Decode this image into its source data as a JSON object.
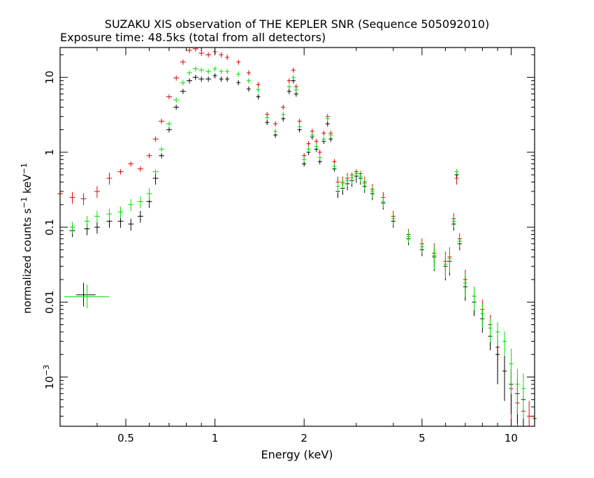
{
  "chart_data": {
    "type": "scatter",
    "title": "SUZAKU XIS observation of THE KEPLER SNR (Sequence 505092010)",
    "subtitle": "Exposure time: 48.5ks (total from all detectors)",
    "xlabel": "Energy (keV)",
    "ylabel": "normalized counts s",
    "ylabel_sup1": "−1",
    "ylabel_mid": " keV",
    "ylabel_sup2": "−1",
    "x_scale": "log",
    "y_scale": "log",
    "xlim": [
      0.3,
      12
    ],
    "ylim": [
      0.00022,
      25
    ],
    "x_ticks": [
      {
        "value": 0.5,
        "label": "0.5"
      },
      {
        "value": 1,
        "label": "1"
      },
      {
        "value": 2,
        "label": "2"
      },
      {
        "value": 5,
        "label": "5"
      },
      {
        "value": 10,
        "label": "10"
      }
    ],
    "y_ticks": [
      {
        "value": 10,
        "label": "10"
      },
      {
        "value": 1,
        "label": "1"
      },
      {
        "value": 0.1,
        "label": "0.1"
      },
      {
        "value": 0.01,
        "label": "0.01"
      },
      {
        "value": 0.001,
        "label": "10",
        "sup": "−3"
      }
    ],
    "grid": false,
    "series": [
      {
        "color": "#e00000",
        "x": [
          0.3,
          0.33,
          0.36,
          0.4,
          0.44,
          0.48,
          0.52,
          0.56,
          0.6,
          0.63,
          0.66,
          0.7,
          0.74,
          0.78,
          0.82,
          0.86,
          0.9,
          0.95,
          1.0,
          1.05,
          1.1,
          1.2,
          1.3,
          1.4,
          1.5,
          1.6,
          1.7,
          1.78,
          1.84,
          1.88,
          1.93,
          2.0,
          2.07,
          2.13,
          2.2,
          2.26,
          2.33,
          2.4,
          2.46,
          2.53,
          2.6,
          2.7,
          2.8,
          2.9,
          3.0,
          3.1,
          3.2,
          3.4,
          3.7,
          4.0,
          4.5,
          5.0,
          5.5,
          6.0,
          6.2,
          6.4,
          6.55,
          6.7,
          7.0,
          7.5,
          8.0,
          8.5,
          9.0,
          9.5,
          10.0,
          10.5,
          11.0,
          11.5,
          12.0
        ],
        "y": [
          0.28,
          0.25,
          0.24,
          0.3,
          0.45,
          0.55,
          0.7,
          0.6,
          0.9,
          1.5,
          2.6,
          5.5,
          9.8,
          16.0,
          23.0,
          24.0,
          21.0,
          20.0,
          22.0,
          20.0,
          18.5,
          16.0,
          11.5,
          8.0,
          3.2,
          2.4,
          4.0,
          9.0,
          12.5,
          7.5,
          2.6,
          0.9,
          1.3,
          1.9,
          1.4,
          1.0,
          1.8,
          3.0,
          1.8,
          0.75,
          0.4,
          0.4,
          0.45,
          0.5,
          0.55,
          0.52,
          0.4,
          0.32,
          0.25,
          0.14,
          0.08,
          0.06,
          0.045,
          0.035,
          0.04,
          0.13,
          0.45,
          0.07,
          0.02,
          0.012,
          0.008,
          0.005,
          0.0025,
          0.0012,
          0.0007,
          0.00045,
          0.00035,
          0.0003,
          0.00028
        ]
      },
      {
        "color": "#000000",
        "x": [
          0.33,
          0.37,
          0.4,
          0.44,
          0.48,
          0.52,
          0.56,
          0.6,
          0.63,
          0.66,
          0.7,
          0.74,
          0.78,
          0.82,
          0.86,
          0.9,
          0.95,
          1.0,
          1.05,
          1.1,
          1.2,
          1.3,
          1.4,
          1.5,
          1.6,
          1.7,
          1.78,
          1.84,
          1.88,
          1.93,
          2.0,
          2.07,
          2.13,
          2.2,
          2.26,
          2.33,
          2.4,
          2.46,
          2.53,
          2.6,
          2.7,
          2.8,
          2.9,
          3.0,
          3.1,
          3.2,
          3.4,
          3.7,
          4.0,
          4.5,
          5.0,
          5.5,
          6.0,
          6.2,
          6.4,
          6.55,
          6.7,
          7.0,
          7.5,
          8.0,
          8.5,
          9.0,
          9.5,
          10.0,
          10.5,
          11.0
        ],
        "y": [
          0.09,
          0.095,
          0.1,
          0.12,
          0.12,
          0.11,
          0.14,
          0.22,
          0.45,
          0.9,
          2.0,
          4.0,
          6.5,
          9.0,
          10.0,
          9.5,
          9.5,
          10.5,
          9.5,
          9.5,
          8.5,
          7.0,
          5.5,
          2.5,
          1.7,
          2.8,
          6.5,
          9.0,
          6.0,
          2.0,
          0.7,
          1.0,
          1.6,
          1.1,
          0.75,
          1.4,
          2.4,
          1.5,
          0.6,
          0.3,
          0.33,
          0.38,
          0.42,
          0.48,
          0.45,
          0.35,
          0.28,
          0.21,
          0.12,
          0.07,
          0.05,
          0.04,
          0.03,
          0.035,
          0.11,
          0.5,
          0.06,
          0.016,
          0.01,
          0.006,
          0.0035,
          0.002,
          0.0012,
          0.0008,
          0.0006,
          0.0005
        ]
      },
      {
        "color": "#00e000",
        "x": [
          0.33,
          0.37,
          0.4,
          0.44,
          0.48,
          0.52,
          0.56,
          0.6,
          0.63,
          0.66,
          0.7,
          0.74,
          0.78,
          0.82,
          0.86,
          0.9,
          0.95,
          1.0,
          1.05,
          1.1,
          1.2,
          1.3,
          1.4,
          1.5,
          1.6,
          1.7,
          1.78,
          1.84,
          1.88,
          1.93,
          2.0,
          2.07,
          2.13,
          2.2,
          2.26,
          2.33,
          2.4,
          2.46,
          2.53,
          2.6,
          2.7,
          2.8,
          2.9,
          3.0,
          3.1,
          3.2,
          3.4,
          3.7,
          4.0,
          4.5,
          5.0,
          5.5,
          6.0,
          6.2,
          6.4,
          6.55,
          6.7,
          7.0,
          7.5,
          8.0,
          8.5,
          9.0,
          9.5,
          10.0,
          10.5,
          11.0
        ],
        "y": [
          0.1,
          0.12,
          0.14,
          0.15,
          0.16,
          0.2,
          0.22,
          0.28,
          0.55,
          1.1,
          2.4,
          5.0,
          8.5,
          11.5,
          13.0,
          12.5,
          12.0,
          13.0,
          12.0,
          12.0,
          11.0,
          9.0,
          6.8,
          2.9,
          1.9,
          3.2,
          7.5,
          10.0,
          6.8,
          2.2,
          0.8,
          1.1,
          1.7,
          1.2,
          0.85,
          1.5,
          2.8,
          1.7,
          0.65,
          0.35,
          0.38,
          0.42,
          0.46,
          0.52,
          0.48,
          0.38,
          0.3,
          0.22,
          0.13,
          0.075,
          0.055,
          0.042,
          0.032,
          0.038,
          0.12,
          0.55,
          0.065,
          0.018,
          0.012,
          0.007,
          0.0045,
          0.004,
          0.003,
          0.0015,
          0.0008,
          0.0007
        ]
      }
    ]
  }
}
